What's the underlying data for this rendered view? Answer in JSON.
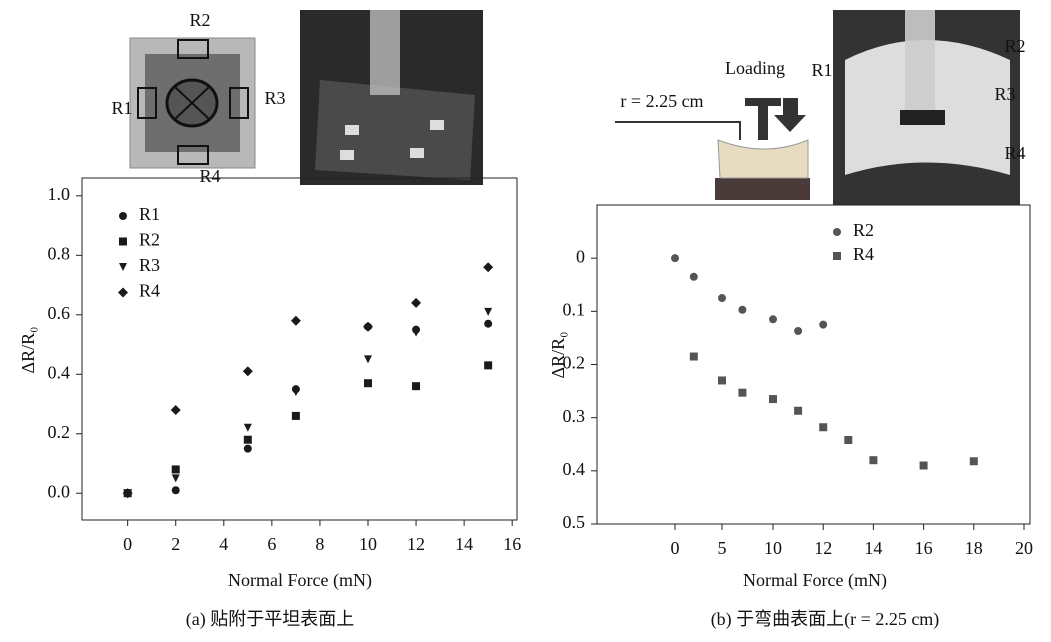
{
  "chart_data": [
    {
      "type": "scatter",
      "caption": "(a)  贴附于平坦表面上",
      "x_label": "Normal Force (mN)",
      "y_label": "ΔR/R₀",
      "annotations": [
        "R2",
        "R1",
        "R3",
        "R4"
      ],
      "xlim": [
        -1.9,
        16.2
      ],
      "ylim": [
        -0.09,
        1.06
      ],
      "xticks": [
        0,
        2,
        4,
        6,
        8,
        10,
        12,
        14,
        16
      ],
      "yticks": [
        {
          "value": 0,
          "label": "0.0"
        },
        0.2,
        0.4,
        0.6,
        0.8,
        {
          "value": 1,
          "label": "1.0"
        }
      ],
      "y_inverted": false,
      "series": [
        {
          "name": "R1",
          "color": "#1a1a1a",
          "marker": "circle",
          "x": [
            0,
            2,
            5,
            7,
            10,
            12,
            15
          ],
          "values": [
            0,
            0.01,
            0.15,
            0.35,
            0.56,
            0.55,
            0.57
          ]
        },
        {
          "name": "R2",
          "color": "#1a1a1a",
          "marker": "square",
          "x": [
            0,
            2,
            5,
            7,
            10,
            12,
            15
          ],
          "values": [
            0,
            0.08,
            0.18,
            0.26,
            0.37,
            0.36,
            0.43
          ]
        },
        {
          "name": "R3",
          "color": "#1a1a1a",
          "marker": "triangle",
          "x": [
            0,
            2,
            5,
            7,
            10,
            12,
            15
          ],
          "values": [
            0,
            0.05,
            0.22,
            0.34,
            0.45,
            0.54,
            0.61
          ]
        },
        {
          "name": "R4",
          "color": "#1a1a1a",
          "marker": "diamond",
          "x": [
            0,
            2,
            5,
            7,
            10,
            12,
            15
          ],
          "values": [
            0,
            0.28,
            0.41,
            0.58,
            0.56,
            0.64,
            0.76
          ]
        }
      ]
    },
    {
      "type": "scatter",
      "caption": "(b)  于弯曲表面上(r = 2.25 cm)",
      "x_label": "Normal Force (mN)",
      "y_label": "ΔR/R₀",
      "annotations": [
        "Loading",
        "r = 2.25 cm",
        "R1",
        "R2",
        "R3",
        "R4"
      ],
      "xlim": [
        -4.5,
        20.3
      ],
      "ylim": [
        -0.1,
        0.5
      ],
      "xticks": [
        0,
        5,
        10,
        12,
        14,
        16,
        18,
        20
      ],
      "yticks": [
        0,
        0.1,
        0.2,
        0.3,
        0.4,
        0.5
      ],
      "y_inverted": true,
      "series": [
        {
          "name": "R2",
          "color": "#555555",
          "marker": "circle",
          "x": [
            0,
            2,
            5,
            7,
            10,
            11,
            12
          ],
          "values": [
            0,
            0.035,
            0.075,
            0.097,
            0.115,
            0.137,
            0.125
          ]
        },
        {
          "name": "R4",
          "color": "#555555",
          "marker": "square",
          "x": [
            2,
            5,
            7,
            10,
            11,
            12,
            13,
            14,
            16,
            18
          ],
          "values": [
            0.185,
            0.23,
            0.253,
            0.265,
            0.287,
            0.318,
            0.342,
            0.38,
            0.39,
            0.382
          ]
        }
      ]
    }
  ]
}
